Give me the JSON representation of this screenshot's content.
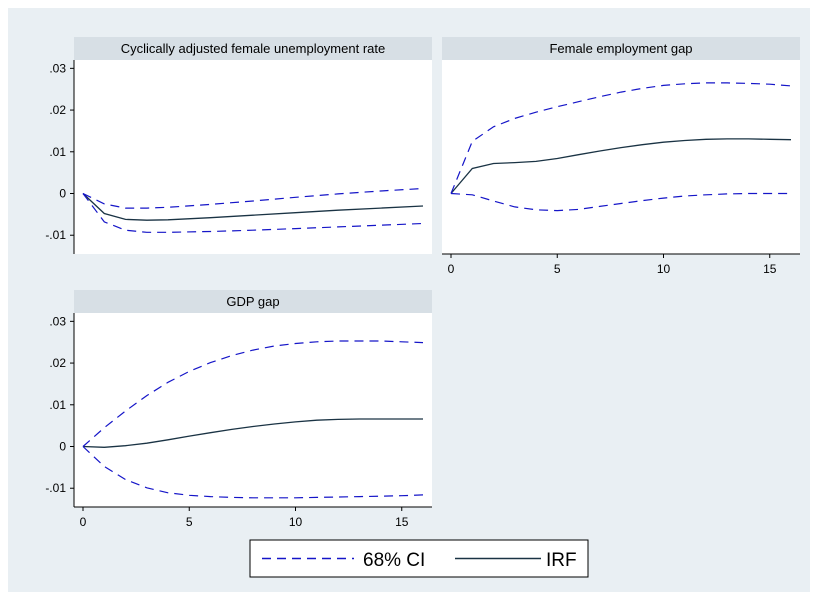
{
  "chart_data": [
    {
      "type": "line",
      "title": "Cyclically adjusted female unemployment rate",
      "xlabel": "",
      "ylabel": "",
      "ylim": [
        -0.0145,
        0.032
      ],
      "yticks": [
        {
          "value": 0.03,
          "label": ".03"
        },
        {
          "value": 0.02,
          "label": ".02"
        },
        {
          "value": 0.01,
          "label": ".01"
        },
        {
          "value": 0,
          "label": "0"
        },
        {
          "value": -0.01,
          "label": "-.01"
        }
      ],
      "xticks": [],
      "x": [
        0,
        1,
        2,
        3,
        4,
        6,
        8,
        10,
        12,
        14,
        16
      ],
      "series": [
        {
          "name": "IRF",
          "style": "solid",
          "values": [
            0,
            -0.0048,
            -0.0062,
            -0.0064,
            -0.0063,
            -0.0058,
            -0.0052,
            -0.0046,
            -0.004,
            -0.0035,
            -0.003
          ]
        },
        {
          "name": "68% CI",
          "style": "dashed",
          "values": [
            0,
            -0.0068,
            -0.0088,
            -0.0093,
            -0.0093,
            -0.0091,
            -0.0088,
            -0.0084,
            -0.008,
            -0.0076,
            -0.0072
          ]
        },
        {
          "name": "68% CI",
          "style": "dashed",
          "values": [
            0,
            -0.0025,
            -0.0035,
            -0.0035,
            -0.0033,
            -0.0026,
            -0.0018,
            -0.0009,
            -0.0001,
            0.0006,
            0.0012
          ]
        }
      ]
    },
    {
      "type": "line",
      "title": "Female employment gap",
      "xlabel": "",
      "ylabel": "",
      "ylim": [
        -0.0145,
        0.032
      ],
      "yticks": [],
      "xlim": [
        0,
        16
      ],
      "xticks": [
        {
          "value": 0,
          "label": "0"
        },
        {
          "value": 5,
          "label": "5"
        },
        {
          "value": 10,
          "label": "10"
        },
        {
          "value": 15,
          "label": "15"
        }
      ],
      "x": [
        0,
        1,
        2,
        3,
        4,
        5,
        6,
        7,
        8,
        9,
        10,
        11,
        12,
        13,
        14,
        15,
        16
      ],
      "series": [
        {
          "name": "IRF",
          "style": "solid",
          "values": [
            0,
            0.006,
            0.0072,
            0.0074,
            0.0077,
            0.0084,
            0.0093,
            0.0102,
            0.011,
            0.0117,
            0.0123,
            0.0127,
            0.013,
            0.0131,
            0.0131,
            0.013,
            0.0129
          ]
        },
        {
          "name": "68% CI",
          "style": "dashed",
          "values": [
            0,
            0.0125,
            0.016,
            0.018,
            0.0195,
            0.0208,
            0.022,
            0.0232,
            0.0243,
            0.0252,
            0.0259,
            0.0263,
            0.0265,
            0.0265,
            0.0264,
            0.0262,
            0.0258
          ]
        },
        {
          "name": "68% CI",
          "style": "dashed",
          "values": [
            0,
            -0.0003,
            -0.0018,
            -0.0032,
            -0.0039,
            -0.0041,
            -0.0038,
            -0.0031,
            -0.0024,
            -0.0017,
            -0.0011,
            -0.0006,
            -0.0003,
            -0.0001,
            0.0,
            0.0,
            0.0
          ]
        }
      ]
    },
    {
      "type": "line",
      "title": "GDP gap",
      "xlabel": "",
      "ylabel": "",
      "ylim": [
        -0.0145,
        0.032
      ],
      "yticks": [
        {
          "value": 0.03,
          "label": ".03"
        },
        {
          "value": 0.02,
          "label": ".02"
        },
        {
          "value": 0.01,
          "label": ".01"
        },
        {
          "value": 0,
          "label": "0"
        },
        {
          "value": -0.01,
          "label": "-.01"
        }
      ],
      "xlim": [
        0,
        16
      ],
      "xticks": [
        {
          "value": 0,
          "label": "0"
        },
        {
          "value": 5,
          "label": "5"
        },
        {
          "value": 10,
          "label": "10"
        },
        {
          "value": 15,
          "label": "15"
        }
      ],
      "x": [
        0,
        1,
        2,
        3,
        4,
        5,
        6,
        7,
        8,
        9,
        10,
        11,
        12,
        13,
        14,
        15,
        16
      ],
      "series": [
        {
          "name": "IRF",
          "style": "solid",
          "values": [
            0,
            -0.0002,
            0.0002,
            0.0008,
            0.0016,
            0.0025,
            0.0033,
            0.0041,
            0.0048,
            0.0054,
            0.0059,
            0.0063,
            0.0065,
            0.0066,
            0.0066,
            0.0066,
            0.0066
          ]
        },
        {
          "name": "68% CI",
          "style": "dashed",
          "values": [
            0,
            0.0045,
            0.0085,
            0.0122,
            0.0154,
            0.018,
            0.0201,
            0.0218,
            0.0231,
            0.0241,
            0.0247,
            0.0251,
            0.0253,
            0.0253,
            0.0253,
            0.0251,
            0.0249
          ]
        },
        {
          "name": "68% CI",
          "style": "dashed",
          "values": [
            0,
            -0.0048,
            -0.0079,
            -0.0099,
            -0.0111,
            -0.0117,
            -0.012,
            -0.0122,
            -0.0123,
            -0.0123,
            -0.0123,
            -0.0122,
            -0.0121,
            -0.012,
            -0.0119,
            -0.0118,
            -0.0116
          ]
        }
      ]
    }
  ],
  "legend": {
    "placement": "bottom-center",
    "entries": [
      {
        "label": "68% CI",
        "style": "dashed",
        "color": "#1515c8"
      },
      {
        "label": "IRF",
        "style": "solid",
        "color": "#1a3344"
      }
    ]
  },
  "colors": {
    "outer_background": "#e9eff3",
    "plot_background": "#ffffff",
    "title_strip": "#d7dfe5",
    "ci_line": "#1515c8",
    "irf_line": "#1a3344",
    "axis": "#000000"
  }
}
